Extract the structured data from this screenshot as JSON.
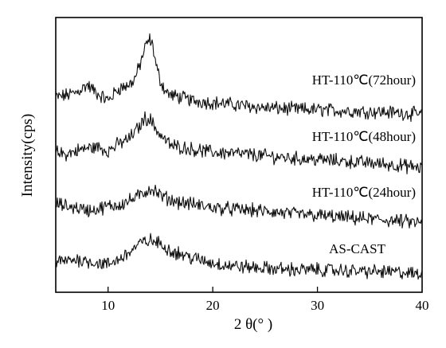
{
  "chart_data": {
    "type": "line",
    "xlabel": "2 θ(° )",
    "ylabel": "Intensity(cps)",
    "xlim": [
      5,
      40
    ],
    "xticks": [
      "10",
      "20",
      "30",
      "40"
    ],
    "grid": false,
    "legend": "series labels placed on the right side next to each curve",
    "series": [
      {
        "name": "HT-110℃(72hour)",
        "offset": 3,
        "x": [
          5,
          6,
          7,
          8,
          9,
          10,
          11,
          12,
          12.5,
          13,
          13.5,
          13.8,
          14,
          14.3,
          14.6,
          15,
          15.5,
          16,
          17,
          18,
          20,
          22,
          25,
          28,
          30,
          33,
          36,
          38,
          40
        ],
        "values": [
          0.38,
          0.42,
          0.48,
          0.62,
          0.45,
          0.32,
          0.55,
          0.62,
          0.72,
          0.98,
          1.32,
          1.45,
          1.5,
          1.35,
          0.98,
          0.7,
          0.5,
          0.42,
          0.38,
          0.32,
          0.28,
          0.24,
          0.18,
          0.15,
          0.14,
          0.12,
          0.1,
          0.08,
          0.05
        ]
      },
      {
        "name": "HT-110℃(48hour)",
        "offset": 2,
        "x": [
          5,
          6,
          7,
          8,
          9,
          10,
          11,
          12,
          12.5,
          13,
          13.5,
          14,
          14.5,
          15,
          15.5,
          16,
          17,
          18,
          20,
          22,
          25,
          28,
          30,
          33,
          36,
          40
        ],
        "values": [
          0.32,
          0.28,
          0.35,
          0.4,
          0.42,
          0.35,
          0.48,
          0.58,
          0.7,
          0.82,
          0.98,
          0.96,
          0.8,
          0.65,
          0.55,
          0.45,
          0.42,
          0.38,
          0.32,
          0.3,
          0.25,
          0.2,
          0.18,
          0.14,
          0.1,
          0.02
        ]
      },
      {
        "name": "HT-110℃(24hour)",
        "offset": 1,
        "x": [
          5,
          6,
          7,
          8,
          9,
          10,
          11,
          12,
          13,
          14,
          14.5,
          15,
          16,
          17,
          18,
          20,
          22,
          25,
          28,
          30,
          33,
          36,
          40
        ],
        "values": [
          0.33,
          0.28,
          0.25,
          0.2,
          0.22,
          0.28,
          0.3,
          0.38,
          0.48,
          0.62,
          0.58,
          0.48,
          0.4,
          0.35,
          0.32,
          0.25,
          0.22,
          0.18,
          0.12,
          0.1,
          0.05,
          0.02,
          -0.05
        ]
      },
      {
        "name": "AS-CAST",
        "offset": 0,
        "x": [
          5,
          6,
          7,
          8,
          9,
          10,
          11,
          12,
          13,
          14,
          15,
          16,
          17,
          18,
          20,
          22,
          25,
          28,
          30,
          33,
          36,
          38,
          40
        ],
        "values": [
          0.2,
          0.22,
          0.25,
          0.22,
          0.18,
          0.15,
          0.25,
          0.38,
          0.55,
          0.62,
          0.55,
          0.42,
          0.35,
          0.28,
          0.18,
          0.12,
          0.08,
          0.05,
          0.05,
          0.03,
          0.01,
          0.0,
          -0.05
        ]
      }
    ]
  },
  "colors": {
    "line": "#111111",
    "axis": "#000000",
    "background": "#ffffff"
  }
}
